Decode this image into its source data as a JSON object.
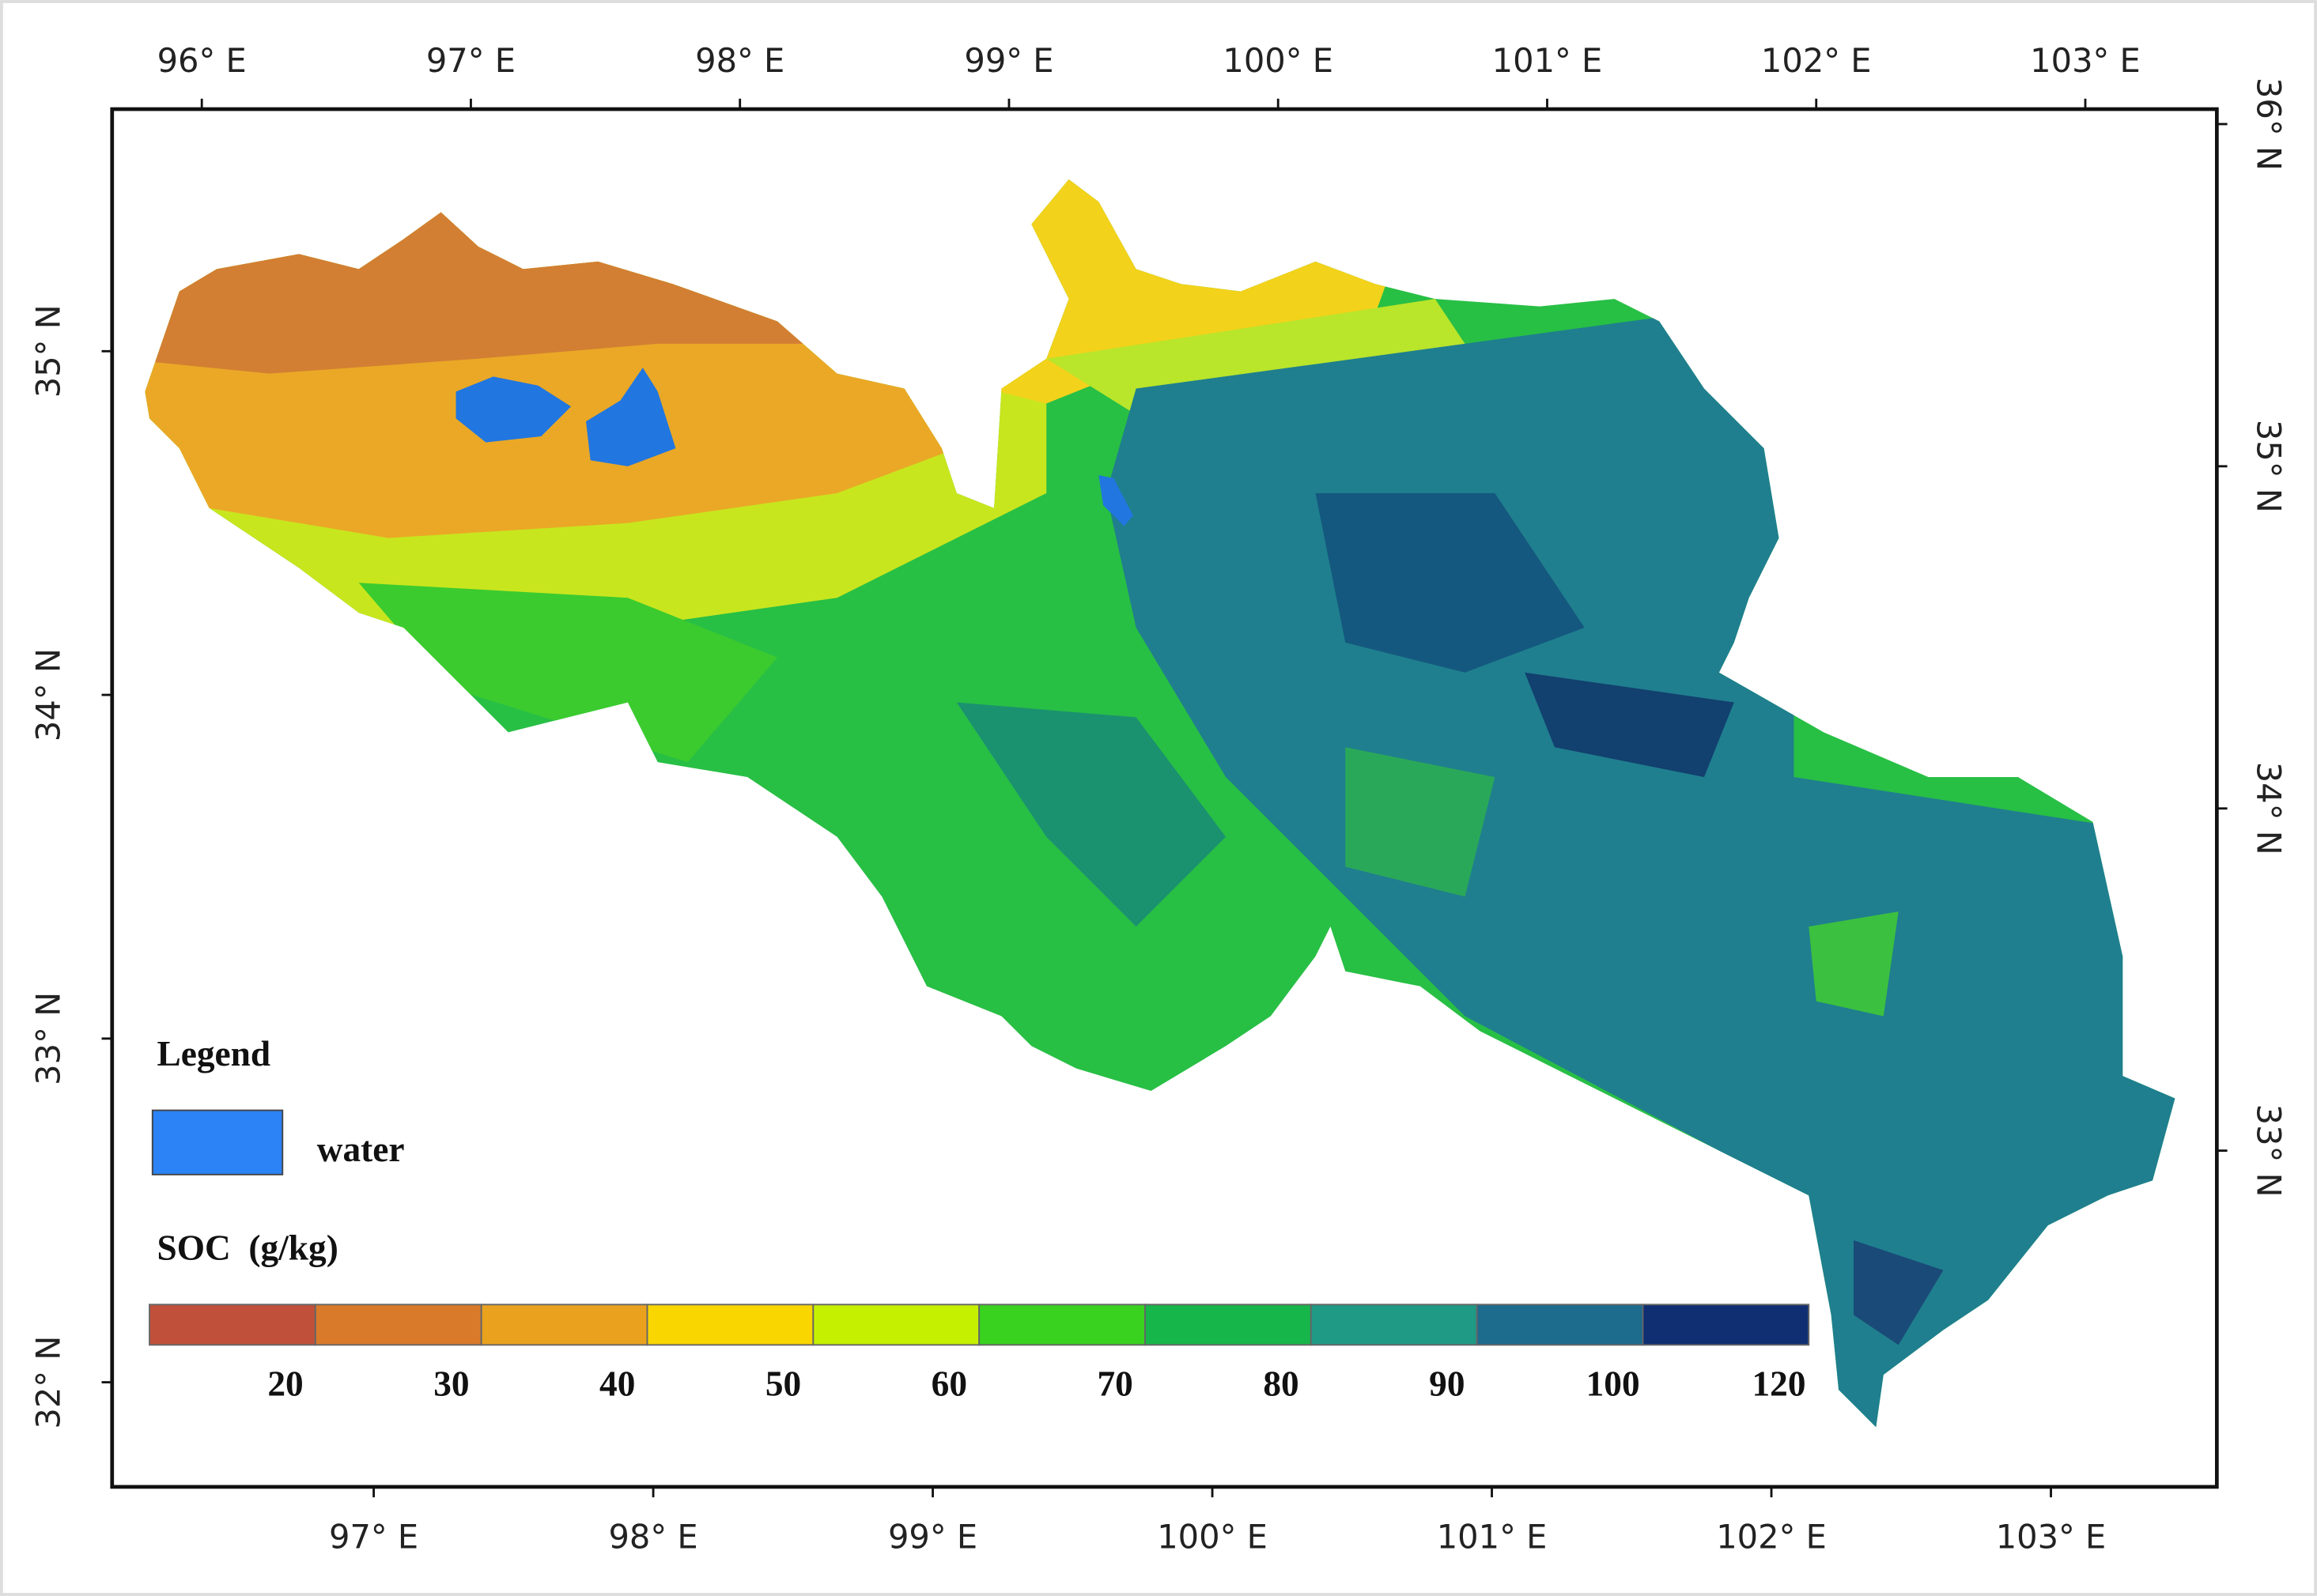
{
  "map": {
    "top_ticks": [
      "96° E",
      "97° E",
      "98° E",
      "99° E",
      "100° E",
      "101° E",
      "102° E",
      "103° E"
    ],
    "bottom_ticks": [
      "97° E",
      "98° E",
      "99° E",
      "100° E",
      "101° E",
      "102° E",
      "103° E"
    ],
    "left_ticks": [
      "35° N",
      "34° N",
      "33° N",
      "32° N"
    ],
    "right_ticks": [
      "36° N",
      "35° N",
      "34° N",
      "33° N"
    ],
    "legend": {
      "title": "Legend",
      "water": {
        "label": "water",
        "color": "#2b83f6"
      },
      "scale_title": "SOC  (g/kg)",
      "classes": [
        {
          "label": 20,
          "color": "#c0503a"
        },
        {
          "label": 30,
          "color": "#d97a2a"
        },
        {
          "label": 40,
          "color": "#eaa11e"
        },
        {
          "label": 50,
          "color": "#fad600"
        },
        {
          "label": 60,
          "color": "#c5f000"
        },
        {
          "label": 70,
          "color": "#39d21f"
        },
        {
          "label": 80,
          "color": "#16b64a"
        },
        {
          "label": 90,
          "color": "#1f9a85"
        },
        {
          "label": 100,
          "color": "#1d6b8d"
        },
        {
          "label": 120,
          "color": "#0f2f72"
        }
      ]
    }
  }
}
